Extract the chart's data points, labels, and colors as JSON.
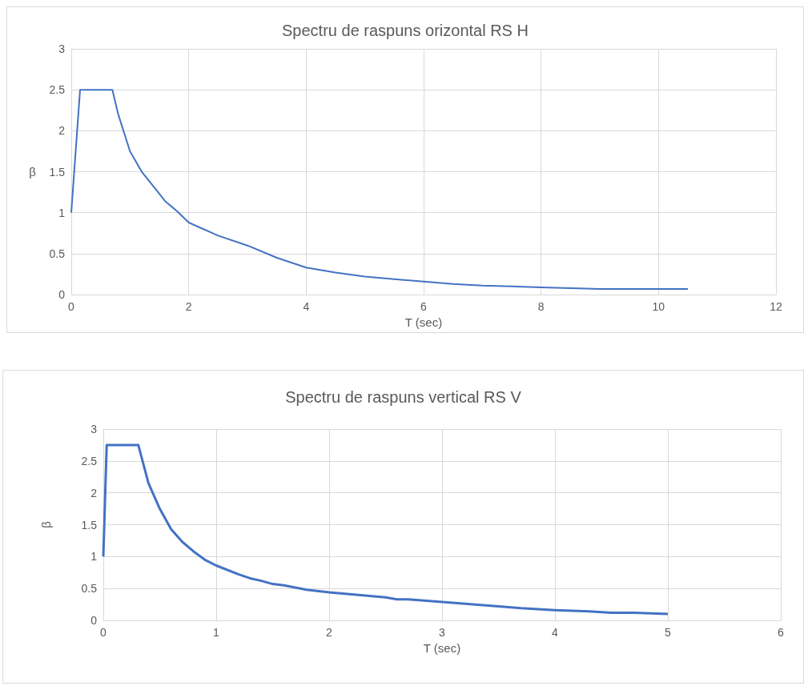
{
  "chart_data": [
    {
      "type": "line",
      "title": "Spectru de raspuns orizontal RS H",
      "xlabel": "T (sec)",
      "ylabel": "β",
      "x": [
        0,
        0.15,
        0.7,
        0.8,
        1,
        1.2,
        1.4,
        1.6,
        1.8,
        2,
        2.5,
        3,
        3.5,
        4,
        4.5,
        5,
        5.5,
        6,
        6.5,
        7,
        7.5,
        8,
        8.5,
        9,
        10.5
      ],
      "series": [
        {
          "color": "#4472c4",
          "values": [
            1,
            2.5,
            2.5,
            2.2,
            1.75,
            1.5,
            1.32,
            1.14,
            1.02,
            0.88,
            0.72,
            0.6,
            0.45,
            0.33,
            0.27,
            0.22,
            0.19,
            0.16,
            0.13,
            0.11,
            0.1,
            0.09,
            0.08,
            0.07,
            0.07
          ]
        }
      ],
      "xlim": [
        0,
        12
      ],
      "xticks": [
        0,
        2,
        4,
        6,
        8,
        10,
        12
      ],
      "ylim": [
        0,
        3
      ],
      "yticks": [
        0,
        0.5,
        1,
        1.5,
        2,
        2.5,
        3
      ],
      "grid": true,
      "marker": "none",
      "line_style": "solid"
    },
    {
      "type": "line",
      "title": "Spectru de raspuns vertical RS V",
      "xlabel": "T (sec)",
      "ylabel": "β",
      "x": [
        0,
        0.03,
        0.31,
        0.4,
        0.5,
        0.6,
        0.7,
        0.8,
        0.9,
        1,
        1.2,
        1.3,
        1.4,
        1.5,
        1.6,
        1.8,
        2,
        2.5,
        2.6,
        2.7,
        3,
        3.5,
        3.7,
        4,
        4.3,
        4.5,
        4.7,
        5
      ],
      "series": [
        {
          "color": "#4472c4",
          "values": [
            1,
            2.75,
            2.75,
            2.15,
            1.75,
            1.43,
            1.23,
            1.08,
            0.95,
            0.86,
            0.72,
            0.66,
            0.62,
            0.57,
            0.55,
            0.48,
            0.44,
            0.36,
            0.33,
            0.33,
            0.29,
            0.22,
            0.19,
            0.16,
            0.14,
            0.12,
            0.12,
            0.1
          ]
        }
      ],
      "xlim": [
        0,
        6
      ],
      "xticks": [
        0,
        1,
        2,
        3,
        4,
        5,
        6
      ],
      "ylim": [
        0,
        3
      ],
      "yticks": [
        0,
        0.5,
        1,
        1.5,
        2,
        2.5,
        3
      ],
      "grid": true,
      "marker": "none",
      "line_style": "solid"
    }
  ]
}
